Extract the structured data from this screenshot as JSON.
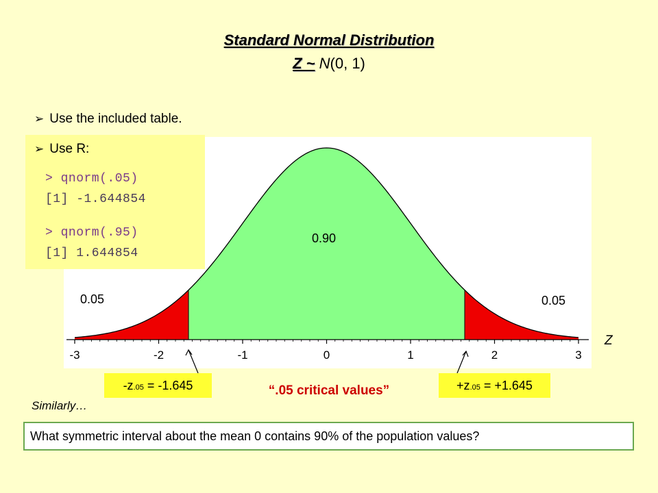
{
  "title": {
    "line1": "Standard Normal Distribution",
    "z_symbol": "Z ~",
    "n_symbol": "N",
    "params": "(0, 1)"
  },
  "bullets": {
    "table": "Use the included table.",
    "r": "Use R:"
  },
  "r_code": {
    "cmd1": "> qnorm(.05)",
    "out1": "[1] -1.644854",
    "cmd2": "> qnorm(.95)",
    "out2": "[1] 1.644854"
  },
  "curve": {
    "center_area": "0.90",
    "left_tail_area": "0.05",
    "right_tail_area": "0.05",
    "axis_name": "Z",
    "tick_labels": [
      "-3",
      "-2",
      "-1",
      "0",
      "1",
      "2",
      "3"
    ],
    "tick_values": [
      -3,
      -2,
      -1,
      0,
      1,
      2,
      3
    ],
    "x_range": [
      -3,
      3
    ],
    "lower_critical": -1.645,
    "upper_critical": 1.645,
    "colors": {
      "tail": "#ee0000",
      "center": "#88ff88",
      "outline": "#000000"
    }
  },
  "critical": {
    "left_prefix": "-z",
    "left_sub": ".05",
    "left_value": " = -1.645",
    "right_prefix": "+z",
    "right_sub": ".05",
    "right_value": " = +1.645",
    "note": "“.05 critical values”"
  },
  "similarly": "Similarly…",
  "question": "What symmetric interval about the mean 0 contains 90% of the population values?"
}
